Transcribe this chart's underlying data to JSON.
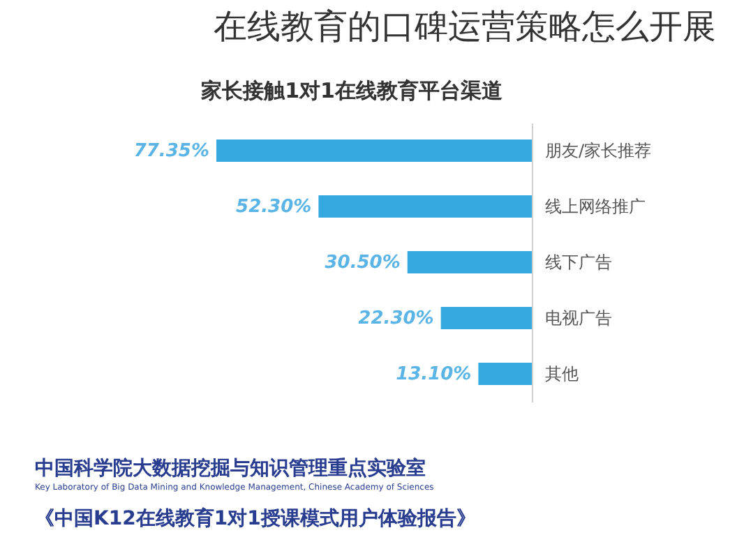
{
  "chart_data": {
    "type": "bar",
    "orientation": "horizontal",
    "title": "在线教育的口碑运营策略怎么开展",
    "subtitle": "家长接触1对1在线教育平台渠道",
    "categories": [
      "朋友/家长推荐",
      "线上网络推广",
      "线下广告",
      "电视广告",
      "其他"
    ],
    "values": [
      77.35,
      52.3,
      30.5,
      22.3,
      13.1
    ],
    "value_labels": [
      "77.35%",
      "52.30%",
      "30.50%",
      "22.30%",
      "13.10%"
    ],
    "color": "#36a9e1",
    "annotations": [
      "中国科学院大数据挖掘与知识管理重点实验室",
      "Key Laboratory of Big Data Mining and Knowledge Management, Chinese Academy of Sciences",
      "《中国K12在线教育1对1授课模式用户体验报告》"
    ]
  }
}
